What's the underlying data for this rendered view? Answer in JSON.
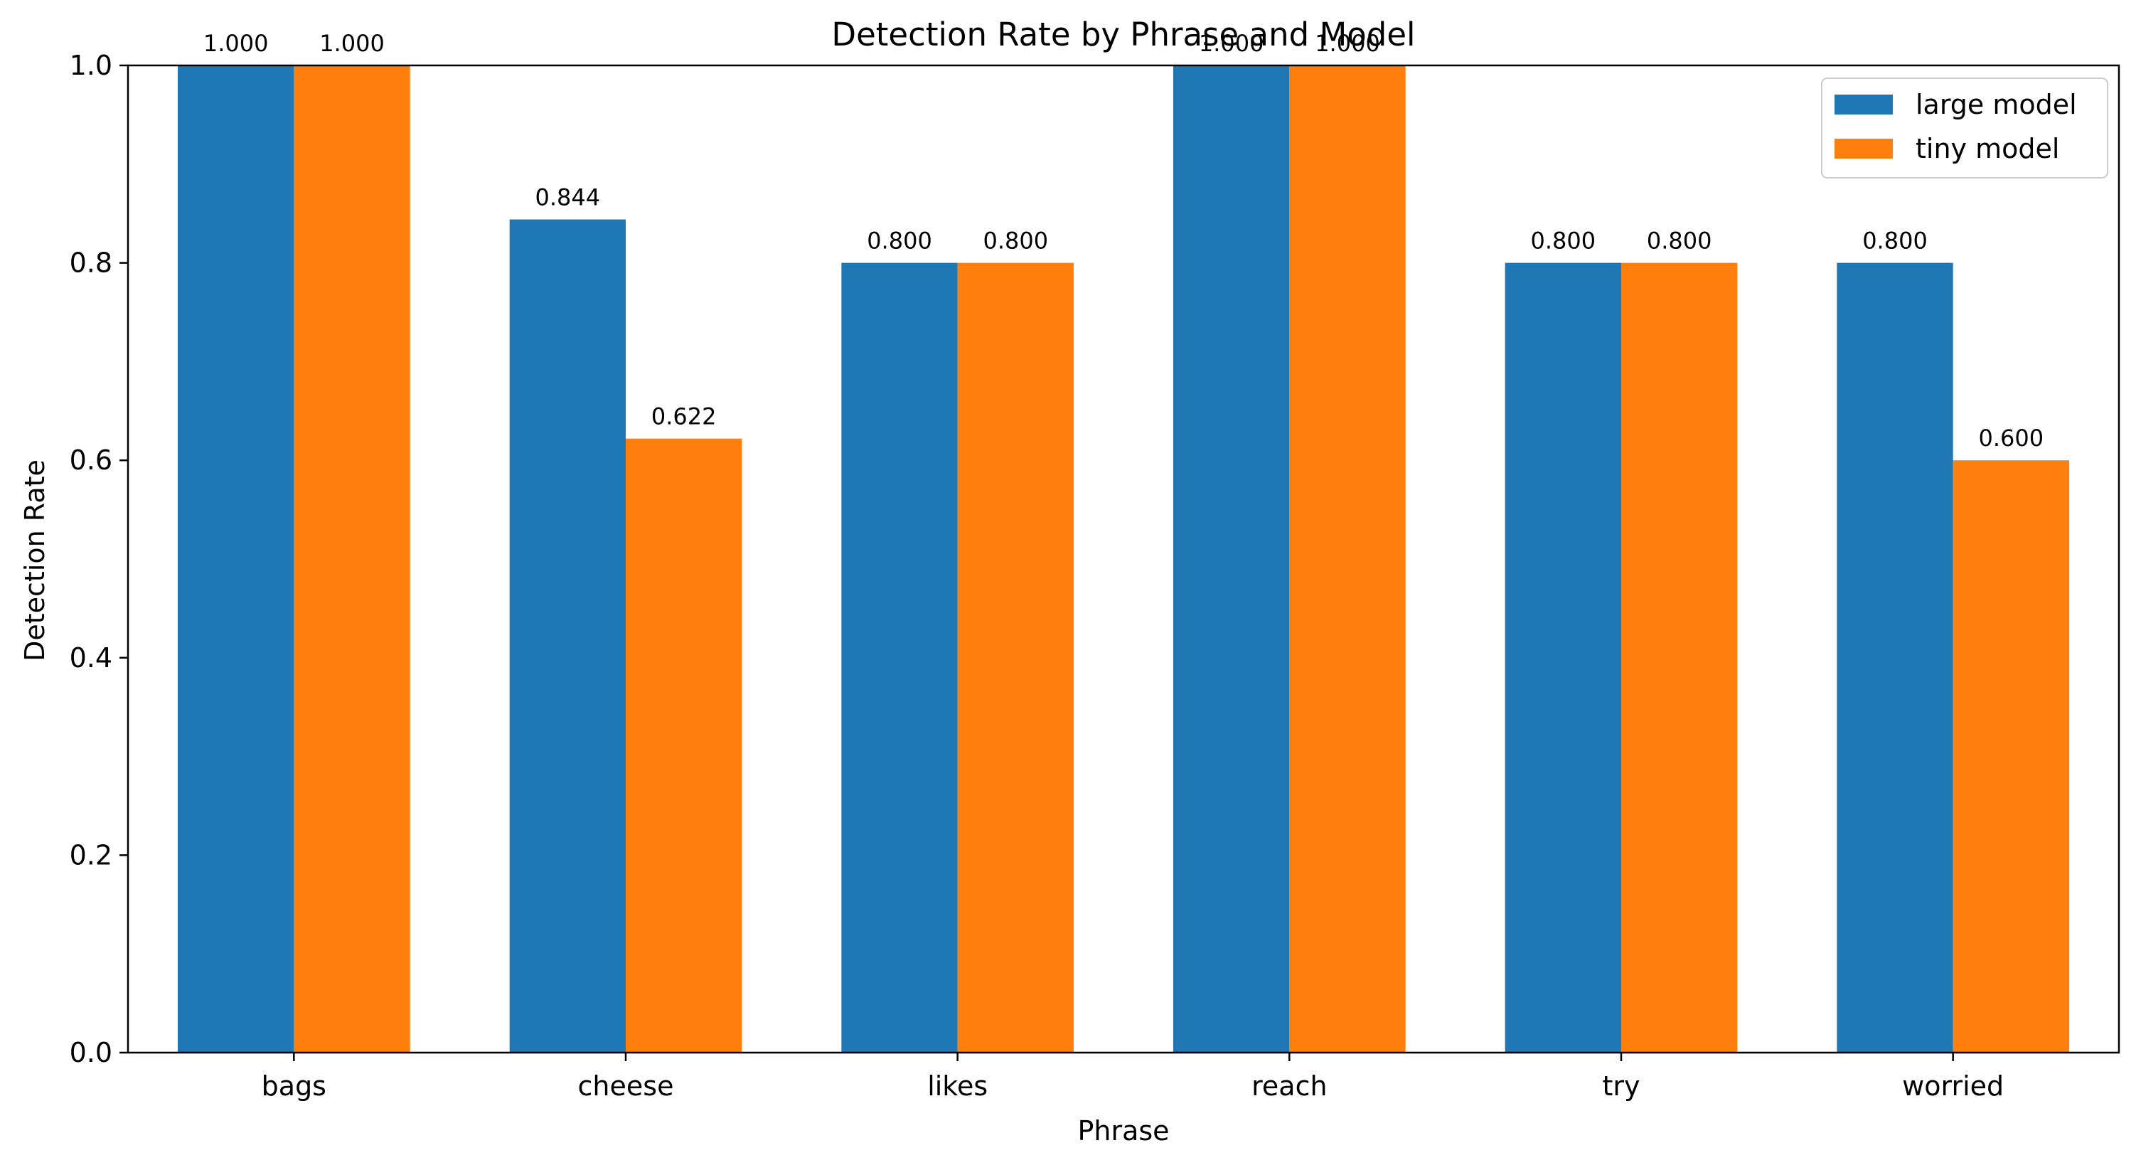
{
  "chart_data": {
    "type": "bar",
    "title": "Detection Rate by Phrase and Model",
    "xlabel": "Phrase",
    "ylabel": "Detection Rate",
    "ylim": [
      0,
      1.0
    ],
    "yticks": [
      0.0,
      0.2,
      0.4,
      0.6,
      0.8,
      1.0
    ],
    "ytick_labels": [
      "0.0",
      "0.2",
      "0.4",
      "0.6",
      "0.8",
      "1.0"
    ],
    "categories": [
      "bags",
      "cheese",
      "likes",
      "reach",
      "try",
      "worried"
    ],
    "series": [
      {
        "name": "large model",
        "color": "#1f77b4",
        "values": [
          1.0,
          0.844,
          0.8,
          1.0,
          0.8,
          0.8
        ],
        "labels": [
          "1.000",
          "0.844",
          "0.800",
          "1.000",
          "0.800",
          "0.800"
        ]
      },
      {
        "name": "tiny model",
        "color": "#ff7f0e",
        "values": [
          1.0,
          0.622,
          0.8,
          1.0,
          0.8,
          0.6
        ],
        "labels": [
          "1.000",
          "0.622",
          "0.800",
          "1.000",
          "0.800",
          "0.600"
        ]
      }
    ],
    "legend_position": "top-right",
    "grid": false
  }
}
